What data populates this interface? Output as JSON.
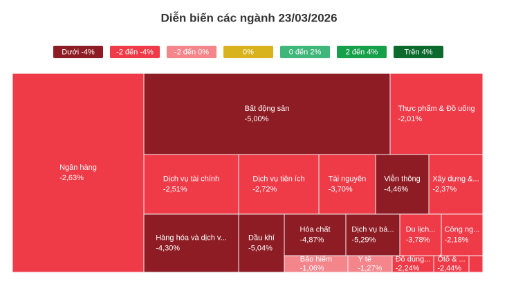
{
  "chart_data": {
    "type": "treemap",
    "title": "Diễn biến các ngành 23/03/2026",
    "legend": [
      {
        "label": "Dưới -4%",
        "color": "#8e1c24"
      },
      {
        "label": "-2 đến -4%",
        "color": "#ef3a48"
      },
      {
        "label": "-2 đến 0%",
        "color": "#f3858b"
      },
      {
        "label": "0%",
        "color": "#d9b31d"
      },
      {
        "label": "0 đến 2%",
        "color": "#3fb67a"
      },
      {
        "label": "2 đến 4%",
        "color": "#16a04a"
      },
      {
        "label": "Trên 4%",
        "color": "#0b6a2c"
      }
    ],
    "categories": [
      "Ngân hàng",
      "Bất động sản",
      "Thực phẩm & Đồ uống",
      "Dịch vụ tài chính",
      "Dịch vụ tiện ích",
      "Tài nguyên",
      "Viễn thông",
      "Xây dựng &...",
      "Hàng hóa và dịch v...",
      "Dầu khí",
      "Hóa chất",
      "Dịch vụ bá...",
      "Du lịch...",
      "Công ng...",
      "Bảo hiểm",
      "Y tế",
      "Đồ dùng...",
      "Ôtô & ..."
    ],
    "values": [
      -2.63,
      -5.0,
      -2.01,
      -2.51,
      -2.72,
      -3.7,
      -4.46,
      -2.37,
      -4.3,
      -5.04,
      -4.87,
      -5.29,
      -3.78,
      -2.18,
      -1.06,
      -1.27,
      -2.24,
      -2.44
    ],
    "value_labels": [
      "-2,63%",
      "-5,00%",
      "-2,01%",
      "-2,51%",
      "-2,72%",
      "-3,70%",
      "-4,46%",
      "-2,37%",
      "-4,30%",
      "-5,04%",
      "-4,87%",
      "-5,29%",
      "-3,78%",
      "-2,18%",
      "-1,06%",
      "-1,27%",
      "-2,24%",
      "-2,44%"
    ],
    "colors": [
      "#ef3a48",
      "#8e1c24",
      "#ef3a48",
      "#ef3a48",
      "#ef3a48",
      "#ef3a48",
      "#8e1c24",
      "#ef3a48",
      "#8e1c24",
      "#8e1c24",
      "#8e1c24",
      "#8e1c24",
      "#ef3a48",
      "#ef3a48",
      "#f3858b",
      "#f3858b",
      "#ef3a48",
      "#ef3a48"
    ]
  }
}
